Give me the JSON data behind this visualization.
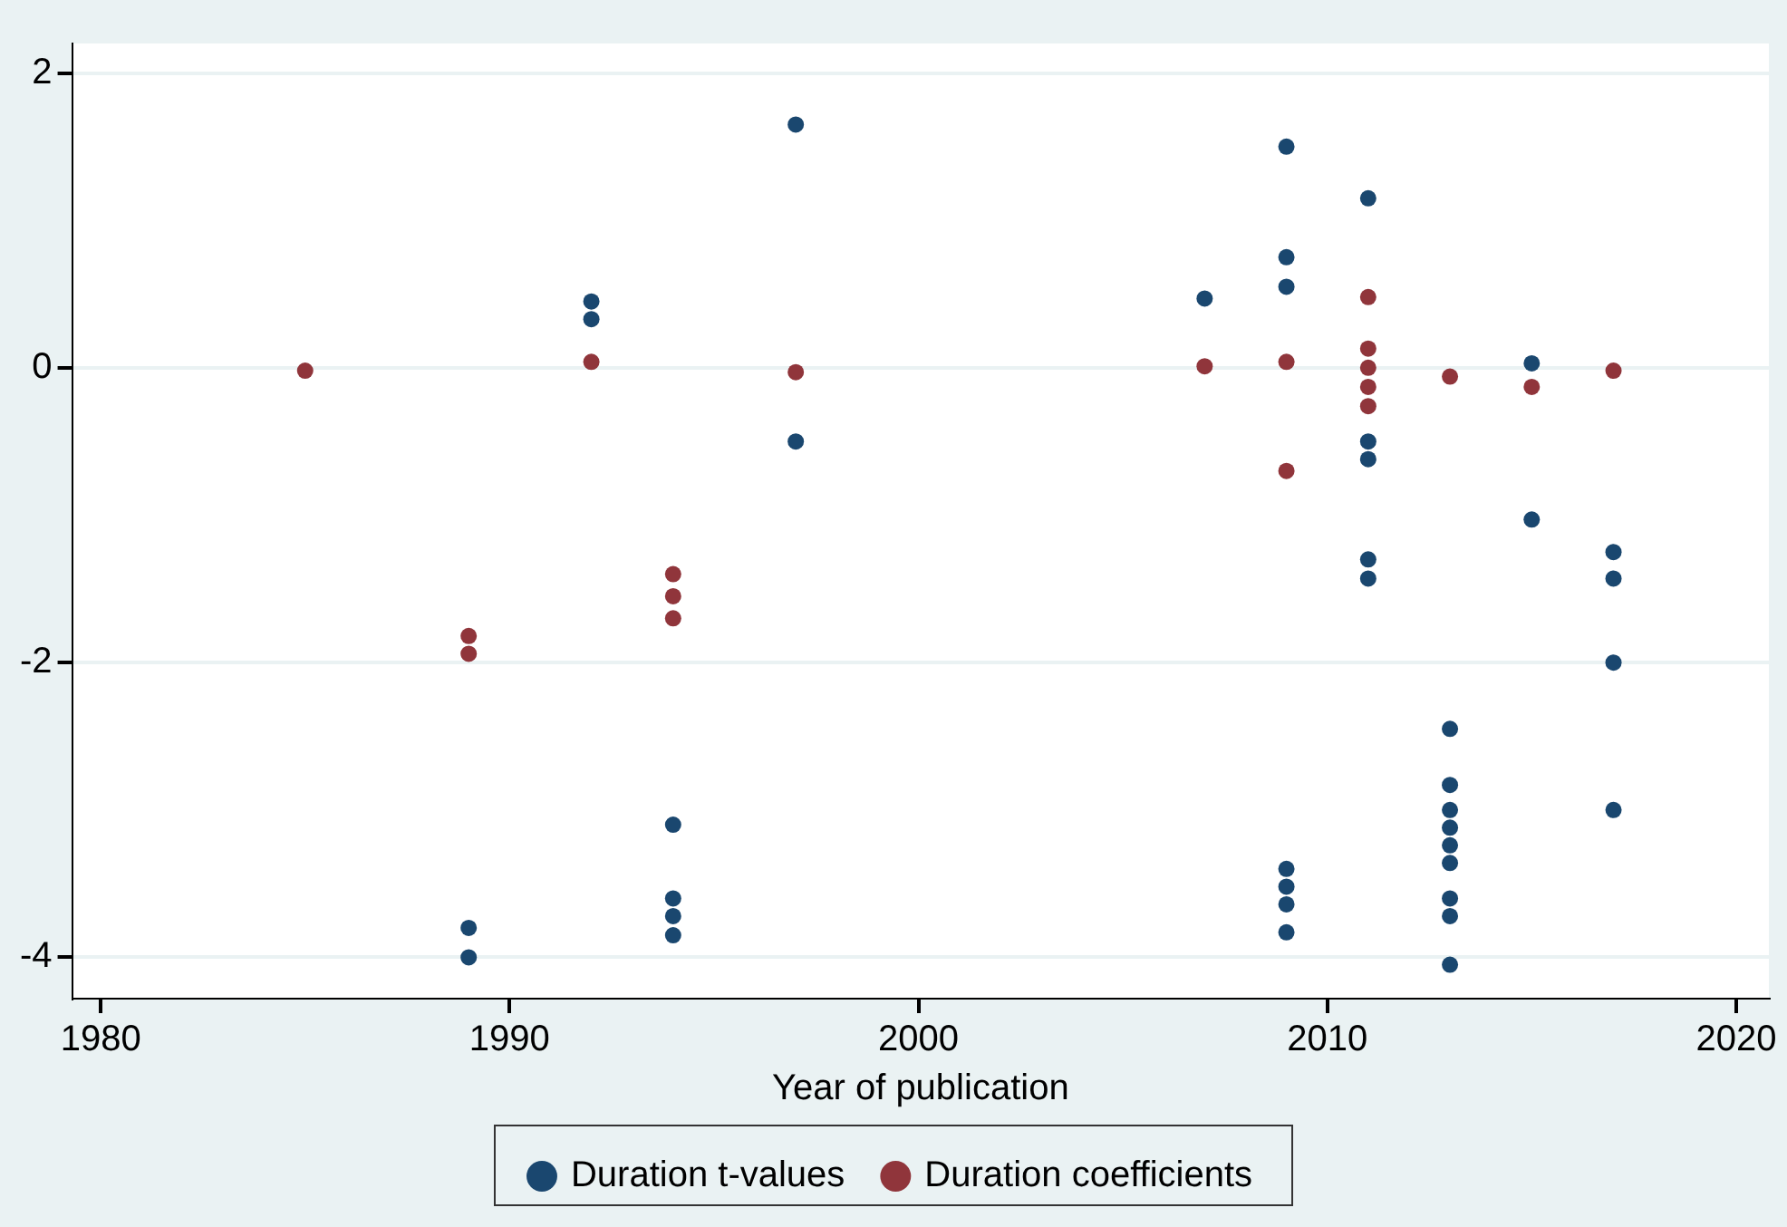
{
  "chart_data": {
    "type": "scatter",
    "xlabel": "Year of publication",
    "xlim": [
      1979.3,
      2020.8
    ],
    "xticks": [
      1980,
      1990,
      2000,
      2010,
      2020
    ],
    "ylim": [
      -4.28,
      2.2
    ],
    "yticks": [
      -4,
      -2,
      0,
      2
    ],
    "grid": "y",
    "legend": "bottom",
    "marker": "circle",
    "series": [
      {
        "name": "Duration t-values",
        "color": "#1a476f",
        "x": [
          1989,
          1989,
          1992,
          1992,
          1994,
          1994,
          1994,
          1994,
          1997,
          1997,
          2007,
          2009,
          2009,
          2009,
          2009,
          2009,
          2009,
          2009,
          2011,
          2011,
          2011,
          2011,
          2011,
          2013,
          2013,
          2013,
          2013,
          2013,
          2013,
          2013,
          2013,
          2013,
          2015,
          2015,
          2017,
          2017,
          2017,
          2017
        ],
        "values": [
          -3.8,
          -4.0,
          0.45,
          0.33,
          -3.1,
          -3.6,
          -3.72,
          -3.85,
          1.65,
          -0.5,
          0.47,
          1.5,
          0.75,
          0.55,
          -3.4,
          -3.52,
          -3.64,
          -3.83,
          1.15,
          -0.5,
          -0.62,
          -1.3,
          -1.43,
          -2.45,
          -2.83,
          -3.0,
          -3.12,
          -3.24,
          -3.36,
          -3.6,
          -3.72,
          -4.05,
          0.03,
          -1.03,
          -1.25,
          -1.43,
          -2.0,
          -3.0
        ]
      },
      {
        "name": "Duration coefficients",
        "color": "#90353b",
        "x": [
          1985,
          1989,
          1989,
          1992,
          1994,
          1994,
          1994,
          1997,
          2007,
          2009,
          2009,
          2011,
          2011,
          2011,
          2011,
          2011,
          2013,
          2015,
          2017
        ],
        "values": [
          -0.02,
          -1.82,
          -1.94,
          0.04,
          -1.4,
          -1.55,
          -1.7,
          -0.03,
          0.01,
          0.04,
          -0.7,
          0.48,
          0.13,
          0.0,
          -0.13,
          -0.26,
          -0.06,
          -0.13,
          -0.02
        ]
      }
    ]
  }
}
